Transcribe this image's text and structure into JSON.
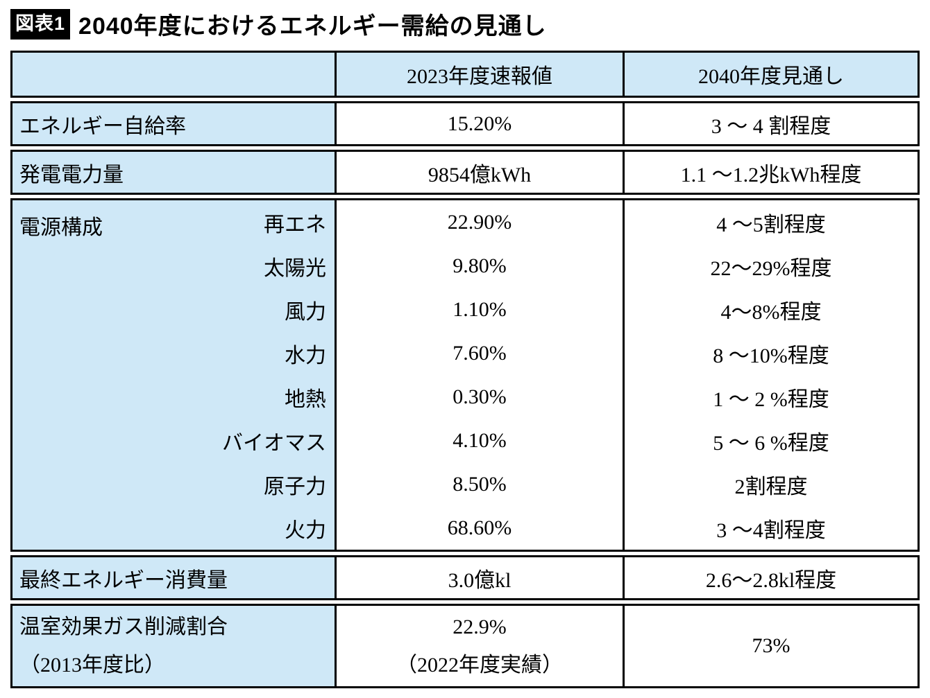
{
  "colors": {
    "accent_bg": "#cfe8f7",
    "border": "#000000",
    "badge_bg": "#000000",
    "badge_fg": "#ffffff"
  },
  "title": {
    "badge": "図表1",
    "text": "2040年度におけるエネルギー需給の見通し"
  },
  "table": {
    "header": {
      "year2023": "2023年度速報値",
      "year2040": "2040年度見通し"
    },
    "self_sufficiency": {
      "label": "エネルギー自給率",
      "v2023": "15.20%",
      "v2040": "3 〜 4 割程度"
    },
    "generation": {
      "label": "発電電力量",
      "v2023": "9854億kWh",
      "v2040": "1.1 〜1.2兆kWh程度"
    },
    "composition": {
      "label": "電源構成",
      "items": [
        {
          "name": "再エネ",
          "v2023": "22.90%",
          "v2040": "4 〜5割程度"
        },
        {
          "name": "太陽光",
          "v2023": "9.80%",
          "v2040": "22〜29%程度"
        },
        {
          "name": "風力",
          "v2023": "1.10%",
          "v2040": "4〜8%程度"
        },
        {
          "name": "水力",
          "v2023": "7.60%",
          "v2040": "8 〜10%程度"
        },
        {
          "name": "地熱",
          "v2023": "0.30%",
          "v2040": "1 〜 2 %程度"
        },
        {
          "name": "バイオマス",
          "v2023": "4.10%",
          "v2040": "5 〜 6 %程度"
        },
        {
          "name": "原子力",
          "v2023": "8.50%",
          "v2040": "2割程度"
        },
        {
          "name": "火力",
          "v2023": "68.60%",
          "v2040": "3 〜4割程度"
        }
      ]
    },
    "final_consumption": {
      "label": "最終エネルギー消費量",
      "v2023": "3.0億kl",
      "v2040": "2.6〜2.8kl程度"
    },
    "ghg": {
      "label_line1": "温室効果ガス削減割合",
      "label_line2": "（2013年度比）",
      "v2023_line1": "22.9%",
      "v2023_line2": "（2022年度実績）",
      "v2040": "73%"
    }
  },
  "chart_data": {
    "type": "table",
    "title": "2040年度におけるエネルギー需給の見通し",
    "columns": [
      "",
      "2023年度速報値",
      "2040年度見通し"
    ],
    "rows": [
      [
        "エネルギー自給率",
        "15.20%",
        "3〜4割程度"
      ],
      [
        "発電電力量",
        "9854億kWh",
        "1.1〜1.2兆kWh程度"
      ],
      [
        "電源構成：再エネ",
        "22.90%",
        "4〜5割程度"
      ],
      [
        "電源構成：太陽光",
        "9.80%",
        "22〜29%程度"
      ],
      [
        "電源構成：風力",
        "1.10%",
        "4〜8%程度"
      ],
      [
        "電源構成：水力",
        "7.60%",
        "8〜10%程度"
      ],
      [
        "電源構成：地熱",
        "0.30%",
        "1〜2%程度"
      ],
      [
        "電源構成：バイオマス",
        "4.10%",
        "5〜6%程度"
      ],
      [
        "電源構成：原子力",
        "8.50%",
        "2割程度"
      ],
      [
        "電源構成：火力",
        "68.60%",
        "3〜4割程度"
      ],
      [
        "最終エネルギー消費量",
        "3.0億kl",
        "2.6〜2.8kl程度"
      ],
      [
        "温室効果ガス削減割合（2013年度比）",
        "22.9%（2022年度実績）",
        "73%"
      ]
    ]
  }
}
